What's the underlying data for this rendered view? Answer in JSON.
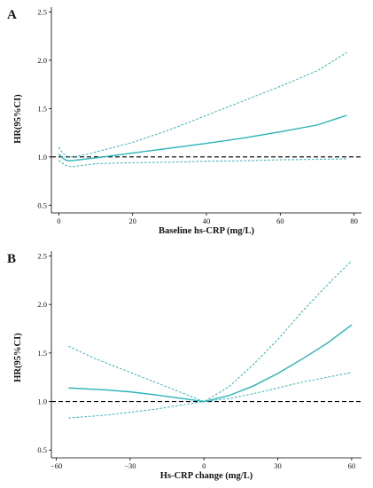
{
  "colors": {
    "curve": "#2bb3b8",
    "reference": "#000000",
    "axis": "#000000"
  },
  "chart_data": [
    {
      "type": "line",
      "panel_label": "A",
      "xlabel": "Baseline hs-CRP (mg/L)",
      "ylabel": "HR(95%CI)",
      "xlim": [
        -2,
        82
      ],
      "ylim": [
        0.42,
        2.55
      ],
      "xticks": [
        0,
        20,
        40,
        60,
        80
      ],
      "yticks": [
        0.5,
        1.0,
        1.5,
        2.0,
        2.5
      ],
      "xtick_labels": [
        "0",
        "20",
        "40",
        "60",
        "80"
      ],
      "ytick_labels": [
        "0.5",
        "1.0",
        "1.5",
        "2.0",
        "2.5"
      ],
      "reference_line": 1.0,
      "series": [
        {
          "role": "estimate",
          "style": "solid",
          "x": [
            0,
            1,
            2,
            3,
            4,
            6,
            8,
            10,
            12,
            15,
            20,
            30,
            40,
            50,
            60,
            70,
            78
          ],
          "y": [
            1.03,
            0.99,
            0.965,
            0.96,
            0.963,
            0.972,
            0.982,
            0.99,
            1.0,
            1.015,
            1.04,
            1.09,
            1.14,
            1.195,
            1.26,
            1.33,
            1.43
          ]
        },
        {
          "role": "upper",
          "style": "dashed",
          "x": [
            0,
            1,
            2,
            3,
            4,
            6,
            8,
            10,
            15,
            20,
            30,
            40,
            50,
            60,
            70,
            78
          ],
          "y": [
            1.1,
            1.04,
            1.01,
            1.0,
            1.0,
            1.015,
            1.03,
            1.05,
            1.1,
            1.15,
            1.28,
            1.43,
            1.58,
            1.73,
            1.89,
            2.08
          ]
        },
        {
          "role": "lower",
          "style": "dashed",
          "x": [
            0,
            1,
            2,
            3,
            4,
            6,
            8,
            10,
            15,
            20,
            30,
            40,
            50,
            60,
            70,
            78
          ],
          "y": [
            0.965,
            0.935,
            0.91,
            0.9,
            0.9,
            0.91,
            0.92,
            0.93,
            0.935,
            0.94,
            0.945,
            0.955,
            0.96,
            0.97,
            0.975,
            0.98
          ]
        }
      ]
    },
    {
      "type": "line",
      "panel_label": "B",
      "xlabel": "Hs-CRP change (mg/L)",
      "ylabel": "HR(95%CI)",
      "xlim": [
        -62,
        64
      ],
      "ylim": [
        0.42,
        2.55
      ],
      "xticks": [
        -60,
        -30,
        0,
        30,
        60
      ],
      "yticks": [
        0.5,
        1.0,
        1.5,
        2.0,
        2.5
      ],
      "xtick_labels": [
        "−60",
        "−30",
        "0",
        "30",
        "60"
      ],
      "ytick_labels": [
        "0.5",
        "1.0",
        "1.5",
        "2.0",
        "2.5"
      ],
      "reference_line": 1.0,
      "series": [
        {
          "role": "estimate",
          "style": "solid",
          "x": [
            -55,
            -40,
            -30,
            -20,
            -10,
            0,
            10,
            20,
            30,
            40,
            50,
            60
          ],
          "y": [
            1.14,
            1.12,
            1.1,
            1.07,
            1.035,
            1.0,
            1.06,
            1.16,
            1.29,
            1.44,
            1.6,
            1.79
          ]
        },
        {
          "role": "upper",
          "style": "dashed",
          "x": [
            -55,
            -45,
            -30,
            -20,
            -10,
            0,
            10,
            20,
            30,
            40,
            50,
            60
          ],
          "y": [
            1.57,
            1.45,
            1.3,
            1.2,
            1.1,
            1.0,
            1.15,
            1.38,
            1.64,
            1.93,
            2.2,
            2.45
          ]
        },
        {
          "role": "lower",
          "style": "dashed",
          "x": [
            -55,
            -40,
            -30,
            -20,
            -10,
            0,
            10,
            20,
            30,
            40,
            50,
            60
          ],
          "y": [
            0.83,
            0.86,
            0.89,
            0.92,
            0.96,
            1.0,
            1.03,
            1.08,
            1.14,
            1.2,
            1.25,
            1.3
          ]
        }
      ]
    }
  ]
}
